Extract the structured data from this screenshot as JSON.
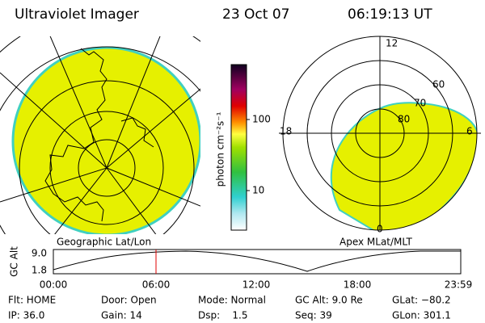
{
  "header": {
    "title": "Ultraviolet Imager",
    "date": "23 Oct 07",
    "time": "06:19:13 UT"
  },
  "colorbar": {
    "label": "photon cm⁻²s⁻¹",
    "ticks": [
      "100",
      "10"
    ]
  },
  "polar": {
    "labels": {
      "top": "12",
      "left": "18",
      "right": "6",
      "bottom": "0"
    },
    "rings": [
      "80",
      "70",
      "60"
    ]
  },
  "captions": {
    "left": "Geographic Lat/Lon",
    "right": "Apex MLat/MLT"
  },
  "altplot": {
    "axis_label": "GC Alt",
    "yticks": [
      "9.0",
      "1.8"
    ],
    "xticks": [
      "00:00",
      "06:00",
      "12:00",
      "18:00",
      "23:59"
    ]
  },
  "info": {
    "rows": [
      [
        "Flt: HOME",
        "Door: Open",
        "Mode: Normal",
        "GC Alt: 9.0 Re",
        "GLat: −80.2"
      ],
      [
        "IP: 36.0",
        "Gain: 14",
        "Dsp:    1.5",
        "Seq: 39",
        "GLon: 301.1"
      ]
    ]
  }
}
